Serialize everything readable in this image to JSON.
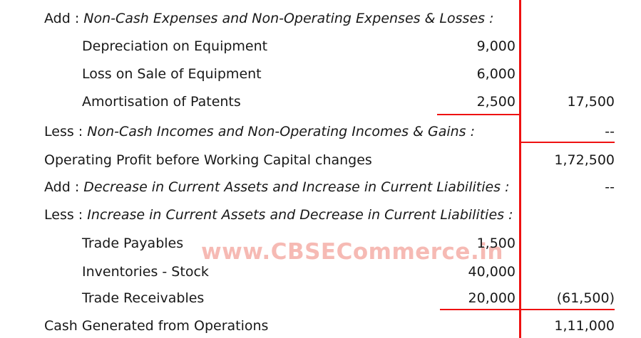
{
  "colors": {
    "accent": "#ee1111",
    "watermark": "#f6bab4",
    "text": "#181818"
  },
  "watermark": {
    "text": "www.CBSECommerce.in"
  },
  "rows": [
    {
      "prefix": "Add : ",
      "label": "Non-Cash Expenses and Non-Operating Expenses & Losses :",
      "mid": "",
      "right": ""
    },
    {
      "prefix": "",
      "label": "Depreciation on Equipment",
      "mid": "9,000",
      "right": ""
    },
    {
      "prefix": "",
      "label": "Loss on Sale of Equipment",
      "mid": "6,000",
      "right": ""
    },
    {
      "prefix": "",
      "label": "Amortisation of Patents",
      "mid": "2,500",
      "right": "17,500"
    },
    {
      "prefix": "Less : ",
      "label": "Non-Cash Incomes and Non-Operating Incomes & Gains :",
      "mid": "",
      "right": "--"
    },
    {
      "prefix": "",
      "label": "Operating Profit before Working Capital changes",
      "mid": "",
      "right": "1,72,500"
    },
    {
      "prefix": "Add : ",
      "label": "Decrease in Current Assets and Increase in Current Liabilities :",
      "mid": "",
      "right": "--"
    },
    {
      "prefix": "Less : ",
      "label": "Increase in Current Assets and Decrease in Current Liabilities :",
      "mid": "",
      "right": ""
    },
    {
      "prefix": "",
      "label": "Trade Payables",
      "mid": "1,500",
      "right": ""
    },
    {
      "prefix": "",
      "label": "Inventories - Stock",
      "mid": "40,000",
      "right": ""
    },
    {
      "prefix": "",
      "label": "Trade Receivables",
      "mid": "20,000",
      "right": "(61,500)"
    },
    {
      "prefix": "",
      "label": "Cash Generated from Operations",
      "mid": "",
      "right": "1,11,000"
    }
  ]
}
